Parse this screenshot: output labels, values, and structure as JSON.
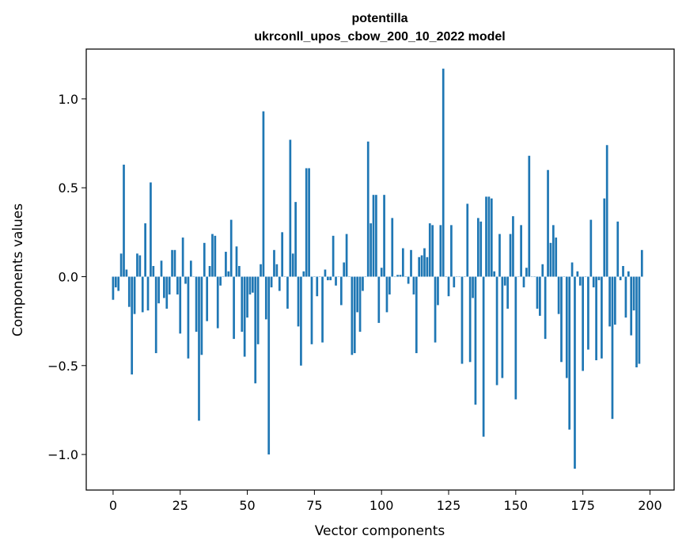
{
  "chart_data": {
    "type": "bar",
    "title_line1": "potentilla",
    "title_line2": "ukrconll_upos_cbow_200_10_2022 model",
    "xlabel": "Vector components",
    "ylabel": "Components values",
    "xlim": [
      -10,
      209
    ],
    "ylim": [
      -1.2,
      1.28
    ],
    "xticks": [
      0,
      25,
      50,
      75,
      100,
      125,
      150,
      175,
      200
    ],
    "xtick_labels": [
      "0",
      "25",
      "50",
      "75",
      "100",
      "125",
      "150",
      "175",
      "200"
    ],
    "yticks": [
      -1.0,
      -0.5,
      0.0,
      0.5,
      1.0
    ],
    "ytick_labels": [
      "−1.0",
      "−0.5",
      "0.0",
      "0.5",
      "1.0"
    ],
    "bar_color": "#1f77b4",
    "grid": false,
    "legend": "none",
    "values": [
      -0.13,
      -0.06,
      -0.08,
      0.13,
      0.63,
      0.04,
      -0.17,
      -0.55,
      -0.21,
      0.13,
      0.12,
      -0.2,
      0.3,
      -0.19,
      0.53,
      0.06,
      -0.43,
      -0.15,
      0.09,
      -0.12,
      -0.18,
      -0.1,
      0.15,
      0.15,
      -0.1,
      -0.32,
      0.22,
      -0.04,
      -0.46,
      0.09,
      0.0,
      -0.31,
      -0.81,
      -0.44,
      0.19,
      -0.25,
      0.06,
      0.24,
      0.23,
      -0.29,
      -0.05,
      0.0,
      0.14,
      0.03,
      0.32,
      -0.35,
      0.17,
      0.06,
      -0.31,
      -0.45,
      -0.23,
      -0.1,
      -0.09,
      -0.6,
      -0.38,
      0.07,
      0.93,
      -0.24,
      -1.0,
      -0.06,
      0.15,
      0.07,
      -0.08,
      0.25,
      0.0,
      -0.18,
      0.77,
      0.13,
      0.42,
      -0.28,
      -0.5,
      0.03,
      0.61,
      0.61,
      -0.38,
      0.0,
      -0.11,
      0.0,
      -0.37,
      0.04,
      -0.02,
      -0.02,
      0.23,
      -0.05,
      0.0,
      -0.16,
      0.08,
      0.24,
      0.0,
      -0.44,
      -0.43,
      -0.2,
      -0.31,
      -0.08,
      0.0,
      0.76,
      0.3,
      0.46,
      0.46,
      -0.26,
      0.05,
      0.46,
      -0.2,
      -0.1,
      0.33,
      0.0,
      0.01,
      0.01,
      0.16,
      0.0,
      -0.04,
      0.15,
      -0.1,
      -0.43,
      0.11,
      0.12,
      0.16,
      0.11,
      0.3,
      0.29,
      -0.37,
      -0.16,
      0.29,
      1.17,
      0.0,
      -0.11,
      0.29,
      -0.06,
      0.0,
      0.0,
      -0.49,
      0.0,
      0.41,
      -0.48,
      -0.12,
      -0.72,
      0.33,
      0.31,
      -0.9,
      0.45,
      0.45,
      0.44,
      0.03,
      -0.61,
      0.24,
      -0.57,
      -0.05,
      -0.18,
      0.24,
      0.34,
      -0.69,
      0.0,
      0.29,
      -0.06,
      0.05,
      0.68,
      0.0,
      0.0,
      -0.18,
      -0.22,
      0.07,
      -0.35,
      0.6,
      0.19,
      0.29,
      0.22,
      -0.21,
      -0.48,
      0.0,
      -0.57,
      -0.86,
      0.08,
      -1.08,
      0.03,
      -0.05,
      -0.53,
      0.0,
      -0.41,
      0.32,
      -0.06,
      -0.47,
      -0.02,
      -0.46,
      0.44,
      0.74,
      -0.28,
      -0.8,
      -0.27,
      0.31,
      -0.02,
      0.06,
      -0.23,
      0.03,
      -0.33,
      -0.19,
      -0.51,
      -0.49,
      0.15
    ]
  }
}
